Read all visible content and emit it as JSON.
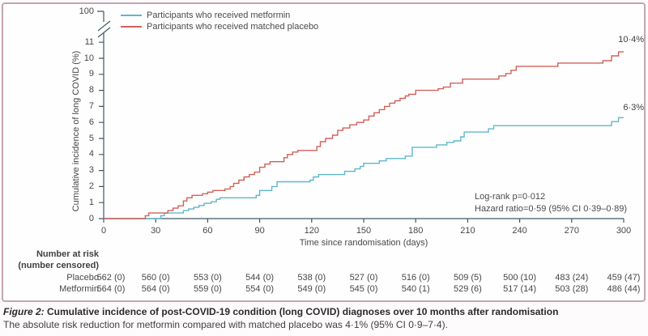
{
  "colors": {
    "axis": "#3e5a63",
    "frame_border": "#c4a6b4",
    "metformin": "#5fb7c9",
    "placebo": "#cf625b"
  },
  "legend": {
    "items": [
      {
        "label": "Participants who received metformin"
      },
      {
        "label": "Participants who received matched placebo"
      }
    ]
  },
  "y_axis": {
    "label": "Cumulative incidence of long COVID (%)",
    "ticks": [
      0,
      1,
      2,
      3,
      4,
      5,
      6,
      7,
      8,
      9,
      10,
      11
    ],
    "break_tick": "100"
  },
  "x_axis": {
    "label": "Time since randomisation (days)",
    "ticks": [
      0,
      30,
      60,
      90,
      120,
      150,
      180,
      210,
      240,
      270,
      300
    ]
  },
  "annotations": {
    "log_rank": "Log-rank p=0·012",
    "hazard_ratio": "Hazard ratio=0·59 (95% CI 0·39–0·89)"
  },
  "risk_table": {
    "header_line1": "Number at risk",
    "header_line2": "(number censored)",
    "rows": [
      {
        "label": "Placebo",
        "values": [
          "562 (0)",
          "560 (0)",
          "553 (0)",
          "544 (0)",
          "538 (0)",
          "527 (0)",
          "516 (0)",
          "509 (5)",
          "500 (10)",
          "483 (24)",
          "459 (47)"
        ]
      },
      {
        "label": "Metformin",
        "values": [
          "564 (0)",
          "564 (0)",
          "559 (0)",
          "554 (0)",
          "549 (0)",
          "545 (0)",
          "540 (1)",
          "529 (6)",
          "517 (14)",
          "503 (28)",
          "486 (44)"
        ]
      }
    ]
  },
  "caption": {
    "figure_label": "Figure 2:",
    "title": " Cumulative incidence of post-COVID-19 condition (long COVID) diagnoses over 10 months after randomisation",
    "body": "The absolute risk reduction for metformin compared with matched placebo was 4·1% (95% CI 0·9–7·4)."
  },
  "chart_data": {
    "type": "line",
    "subtype": "kaplan-meier-step",
    "xlabel": "Time since randomisation (days)",
    "ylabel": "Cumulative incidence of long COVID (%)",
    "xlim": [
      0,
      300
    ],
    "ylim": [
      0,
      11
    ],
    "y_axis_break_upper": 100,
    "legend_position": "top-left",
    "grid": false,
    "series": [
      {
        "id": "metformin",
        "name": "Participants who received metformin",
        "color": "#5fb7c9",
        "end_label": "6·3%",
        "final_value_pct": 6.3,
        "points": [
          [
            0,
            0
          ],
          [
            33,
            0.18
          ],
          [
            35,
            0.35
          ],
          [
            46,
            0.5
          ],
          [
            49,
            0.6
          ],
          [
            52,
            0.7
          ],
          [
            55,
            0.82
          ],
          [
            58,
            0.95
          ],
          [
            62,
            1.05
          ],
          [
            65,
            1.2
          ],
          [
            67,
            1.3
          ],
          [
            88,
            1.45
          ],
          [
            90,
            1.75
          ],
          [
            97,
            2.0
          ],
          [
            100,
            2.3
          ],
          [
            119,
            2.4
          ],
          [
            121,
            2.6
          ],
          [
            124,
            2.75
          ],
          [
            139,
            2.95
          ],
          [
            145,
            3.1
          ],
          [
            148,
            3.25
          ],
          [
            150,
            3.45
          ],
          [
            159,
            3.6
          ],
          [
            163,
            3.75
          ],
          [
            174,
            3.9
          ],
          [
            178,
            4.45
          ],
          [
            192,
            4.6
          ],
          [
            198,
            4.75
          ],
          [
            202,
            4.85
          ],
          [
            206,
            5.1
          ],
          [
            208,
            5.4
          ],
          [
            222,
            5.6
          ],
          [
            225,
            5.8
          ],
          [
            293,
            6.05
          ],
          [
            297,
            6.3
          ],
          [
            300,
            6.3
          ]
        ]
      },
      {
        "id": "placebo",
        "name": "Participants who received matched placebo",
        "color": "#cf625b",
        "end_label": "10·4%",
        "final_value_pct": 10.4,
        "points": [
          [
            0,
            0
          ],
          [
            24,
            0.18
          ],
          [
            26,
            0.35
          ],
          [
            37,
            0.5
          ],
          [
            40,
            0.65
          ],
          [
            43,
            0.8
          ],
          [
            46,
            1.1
          ],
          [
            48,
            1.3
          ],
          [
            51,
            1.45
          ],
          [
            57,
            1.55
          ],
          [
            60,
            1.65
          ],
          [
            63,
            1.75
          ],
          [
            70,
            1.85
          ],
          [
            73,
            2.0
          ],
          [
            75,
            2.2
          ],
          [
            78,
            2.4
          ],
          [
            81,
            2.6
          ],
          [
            84,
            2.75
          ],
          [
            87,
            2.9
          ],
          [
            90,
            3.2
          ],
          [
            93,
            3.4
          ],
          [
            96,
            3.55
          ],
          [
            104,
            3.8
          ],
          [
            106,
            4.0
          ],
          [
            109,
            4.15
          ],
          [
            112,
            4.25
          ],
          [
            123,
            4.5
          ],
          [
            125,
            4.8
          ],
          [
            128,
            5.0
          ],
          [
            132,
            5.2
          ],
          [
            135,
            5.5
          ],
          [
            138,
            5.65
          ],
          [
            142,
            5.85
          ],
          [
            146,
            6.0
          ],
          [
            150,
            6.15
          ],
          [
            153,
            6.4
          ],
          [
            156,
            6.6
          ],
          [
            159,
            6.8
          ],
          [
            162,
            7.0
          ],
          [
            165,
            7.2
          ],
          [
            168,
            7.35
          ],
          [
            171,
            7.5
          ],
          [
            174,
            7.65
          ],
          [
            176,
            7.75
          ],
          [
            180,
            8.0
          ],
          [
            193,
            8.1
          ],
          [
            196,
            8.2
          ],
          [
            200,
            8.45
          ],
          [
            207,
            8.7
          ],
          [
            228,
            8.9
          ],
          [
            232,
            9.05
          ],
          [
            235,
            9.25
          ],
          [
            238,
            9.5
          ],
          [
            262,
            9.7
          ],
          [
            288,
            9.85
          ],
          [
            293,
            10.15
          ],
          [
            297,
            10.4
          ],
          [
            300,
            10.4
          ]
        ]
      }
    ]
  }
}
